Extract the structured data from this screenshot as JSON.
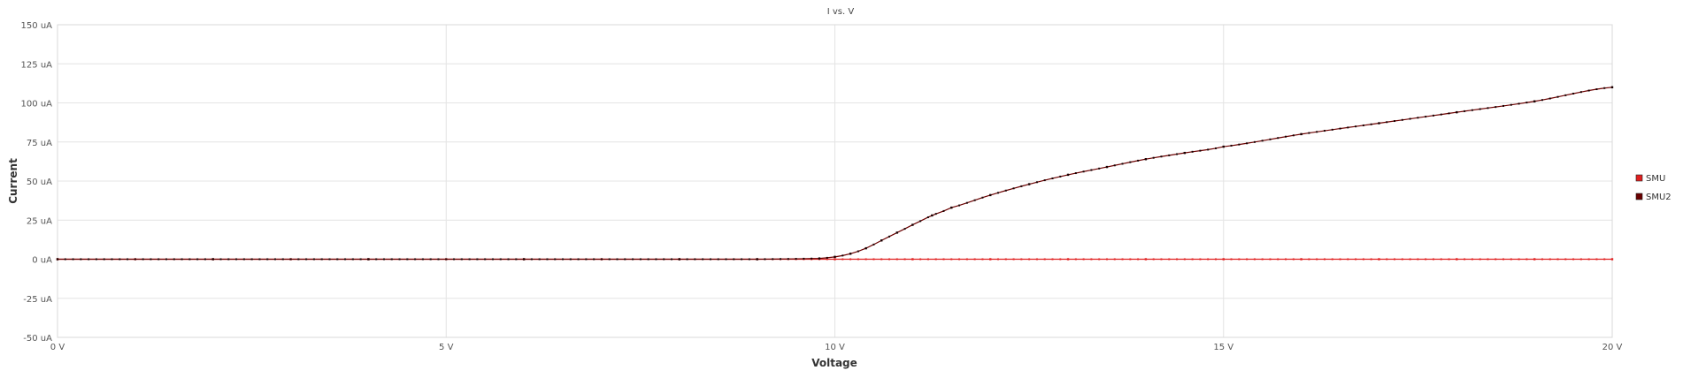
{
  "chart_data": {
    "type": "scatter",
    "title": "I vs. V",
    "xlabel": "Voltage",
    "ylabel": "Current",
    "xlim": [
      0,
      20
    ],
    "ylim": [
      -50,
      150
    ],
    "x_ticks": [
      {
        "value": 0,
        "label": "0 V"
      },
      {
        "value": 5,
        "label": "5 V"
      },
      {
        "value": 10,
        "label": "10 V"
      },
      {
        "value": 15,
        "label": "15 V"
      },
      {
        "value": 20,
        "label": "20 V"
      }
    ],
    "y_ticks": [
      {
        "value": 150,
        "label": "150 uA"
      },
      {
        "value": 125,
        "label": "125 uA"
      },
      {
        "value": 100,
        "label": "100 uA"
      },
      {
        "value": 75,
        "label": "75 uA"
      },
      {
        "value": 50,
        "label": "50 uA"
      },
      {
        "value": 25,
        "label": "25 uA"
      },
      {
        "value": 0,
        "label": "0 uA"
      },
      {
        "value": -25,
        "label": "-25 uA"
      },
      {
        "value": -50,
        "label": "-50 uA"
      }
    ],
    "grid": true,
    "legend_position": "right",
    "series": [
      {
        "name": "SMU",
        "color": "#e02020",
        "x": [
          0,
          1,
          2,
          3,
          4,
          5,
          6,
          7,
          8,
          9,
          10,
          11,
          12,
          13,
          14,
          15,
          16,
          17,
          18,
          19,
          20
        ],
        "y": [
          0,
          0,
          0,
          0,
          0,
          0,
          0,
          0,
          0,
          0,
          0,
          0,
          0,
          0,
          0,
          0,
          0,
          0,
          0,
          0,
          0
        ]
      },
      {
        "name": "SMU2",
        "color": "#6b0000",
        "x": [
          0,
          2,
          4,
          6,
          8,
          9,
          9.8,
          10,
          10.2,
          10.4,
          10.6,
          10.8,
          11,
          11.25,
          11.5,
          12,
          12.5,
          13,
          13.5,
          14,
          14.5,
          15,
          16,
          17,
          18,
          19,
          20
        ],
        "y": [
          0,
          0,
          0,
          0,
          0,
          0,
          0.5,
          1.5,
          3.5,
          7,
          12,
          17,
          22,
          28,
          33,
          41,
          48,
          54,
          59,
          64,
          68,
          72,
          80,
          87,
          94,
          101,
          110
        ]
      }
    ]
  }
}
